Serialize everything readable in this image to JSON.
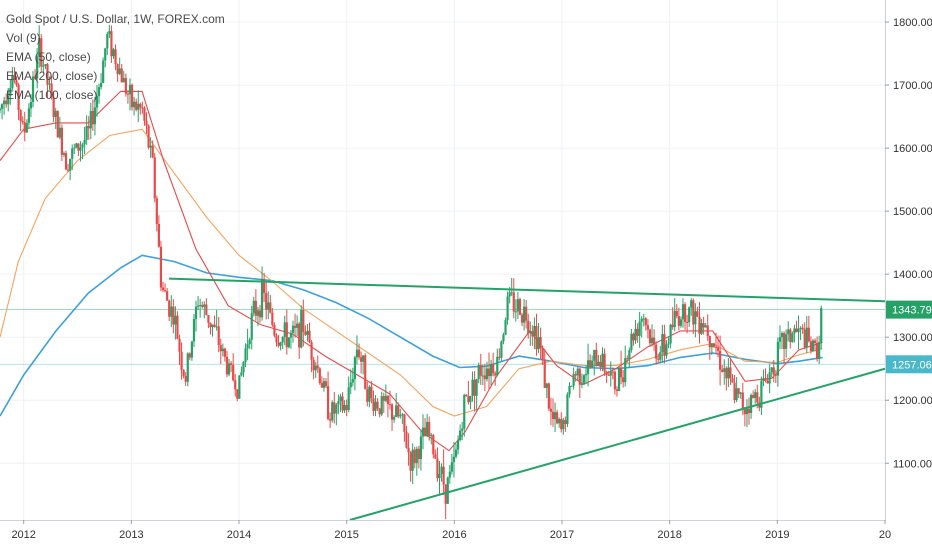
{
  "chart_data": {
    "type": "candlestick",
    "title": "Gold Spot / U.S. Dollar, 1W, FOREX.com",
    "indicators": [
      "Vol (9)",
      "EMA (50, close)",
      "EMA (200, close)",
      "EMA (100, close)"
    ],
    "x_ticks": [
      "2012",
      "2013",
      "2014",
      "2015",
      "2016",
      "2017",
      "2018",
      "2019",
      "20"
    ],
    "y_ticks": [
      "1800.00",
      "1700.00",
      "1600.00",
      "1500.00",
      "1400.00",
      "1300.00",
      "1200.00",
      "1100.00"
    ],
    "ylim": [
      1010,
      1835
    ],
    "xlim": [
      2011.78,
      2020.0
    ],
    "price_badges": [
      {
        "label": "1343.79",
        "value": 1343.79,
        "color": "#26a269"
      },
      {
        "label": "1257.06",
        "value": 1257.06,
        "color": "#4ab8c8"
      }
    ],
    "horizontal_lines": [
      1343.79,
      1257.06
    ],
    "trendlines": [
      {
        "name": "upper",
        "from": [
          2013.35,
          1393
        ],
        "to": [
          2020.0,
          1357
        ]
      },
      {
        "name": "lower",
        "from": [
          2015.03,
          1010
        ],
        "to": [
          2020.0,
          1250
        ]
      }
    ],
    "price_path": [
      [
        2011.78,
        1660
      ],
      [
        2011.9,
        1720
      ],
      [
        2012.0,
        1620
      ],
      [
        2012.15,
        1760
      ],
      [
        2012.3,
        1640
      ],
      [
        2012.4,
        1580
      ],
      [
        2012.5,
        1600
      ],
      [
        2012.6,
        1620
      ],
      [
        2012.7,
        1700
      ],
      [
        2012.78,
        1780
      ],
      [
        2012.9,
        1720
      ],
      [
        2013.0,
        1670
      ],
      [
        2013.1,
        1660
      ],
      [
        2013.2,
        1570
      ],
      [
        2013.28,
        1380
      ],
      [
        2013.4,
        1330
      ],
      [
        2013.5,
        1230
      ],
      [
        2013.62,
        1360
      ],
      [
        2013.75,
        1320
      ],
      [
        2013.9,
        1250
      ],
      [
        2014.0,
        1220
      ],
      [
        2014.1,
        1320
      ],
      [
        2014.22,
        1370
      ],
      [
        2014.35,
        1300
      ],
      [
        2014.5,
        1300
      ],
      [
        2014.6,
        1320
      ],
      [
        2014.75,
        1240
      ],
      [
        2014.85,
        1180
      ],
      [
        2015.0,
        1190
      ],
      [
        2015.1,
        1290
      ],
      [
        2015.22,
        1200
      ],
      [
        2015.35,
        1190
      ],
      [
        2015.5,
        1170
      ],
      [
        2015.6,
        1100
      ],
      [
        2015.75,
        1150
      ],
      [
        2015.92,
        1060
      ],
      [
        2016.0,
        1100
      ],
      [
        2016.1,
        1200
      ],
      [
        2016.25,
        1250
      ],
      [
        2016.4,
        1260
      ],
      [
        2016.5,
        1360
      ],
      [
        2016.65,
        1340
      ],
      [
        2016.78,
        1300
      ],
      [
        2016.9,
        1170
      ],
      [
        2017.0,
        1150
      ],
      [
        2017.1,
        1240
      ],
      [
        2017.25,
        1250
      ],
      [
        2017.35,
        1270
      ],
      [
        2017.5,
        1220
      ],
      [
        2017.65,
        1300
      ],
      [
        2017.75,
        1340
      ],
      [
        2017.85,
        1280
      ],
      [
        2017.95,
        1280
      ],
      [
        2018.05,
        1330
      ],
      [
        2018.15,
        1345
      ],
      [
        2018.3,
        1330
      ],
      [
        2018.4,
        1300
      ],
      [
        2018.5,
        1250
      ],
      [
        2018.6,
        1210
      ],
      [
        2018.7,
        1190
      ],
      [
        2018.82,
        1210
      ],
      [
        2018.95,
        1250
      ],
      [
        2019.05,
        1290
      ],
      [
        2019.15,
        1310
      ],
      [
        2019.25,
        1300
      ],
      [
        2019.32,
        1280
      ],
      [
        2019.38,
        1285
      ],
      [
        2019.42,
        1344
      ]
    ],
    "ema_50_path": [
      [
        2011.78,
        1580
      ],
      [
        2012.0,
        1630
      ],
      [
        2012.3,
        1640
      ],
      [
        2012.6,
        1640
      ],
      [
        2012.9,
        1690
      ],
      [
        2013.1,
        1690
      ],
      [
        2013.3,
        1580
      ],
      [
        2013.6,
        1440
      ],
      [
        2013.9,
        1350
      ],
      [
        2014.2,
        1320
      ],
      [
        2014.5,
        1305
      ],
      [
        2014.8,
        1270
      ],
      [
        2015.1,
        1240
      ],
      [
        2015.4,
        1210
      ],
      [
        2015.7,
        1150
      ],
      [
        2015.95,
        1120
      ],
      [
        2016.1,
        1150
      ],
      [
        2016.4,
        1240
      ],
      [
        2016.7,
        1310
      ],
      [
        2016.95,
        1255
      ],
      [
        2017.2,
        1225
      ],
      [
        2017.5,
        1250
      ],
      [
        2017.8,
        1285
      ],
      [
        2018.1,
        1310
      ],
      [
        2018.4,
        1310
      ],
      [
        2018.7,
        1230
      ],
      [
        2018.95,
        1235
      ],
      [
        2019.2,
        1280
      ],
      [
        2019.42,
        1292
      ]
    ],
    "ema_100_path": [
      [
        2011.78,
        1300
      ],
      [
        2011.95,
        1420
      ],
      [
        2012.2,
        1520
      ],
      [
        2012.5,
        1580
      ],
      [
        2012.8,
        1620
      ],
      [
        2013.1,
        1630
      ],
      [
        2013.4,
        1560
      ],
      [
        2013.7,
        1490
      ],
      [
        2014.0,
        1430
      ],
      [
        2014.3,
        1390
      ],
      [
        2014.6,
        1345
      ],
      [
        2014.9,
        1310
      ],
      [
        2015.2,
        1275
      ],
      [
        2015.5,
        1240
      ],
      [
        2015.8,
        1190
      ],
      [
        2016.0,
        1175
      ],
      [
        2016.3,
        1190
      ],
      [
        2016.6,
        1250
      ],
      [
        2016.9,
        1262
      ],
      [
        2017.2,
        1255
      ],
      [
        2017.5,
        1255
      ],
      [
        2017.8,
        1265
      ],
      [
        2018.1,
        1280
      ],
      [
        2018.4,
        1290
      ],
      [
        2018.7,
        1262
      ],
      [
        2019.0,
        1260
      ],
      [
        2019.2,
        1272
      ],
      [
        2019.42,
        1282
      ]
    ],
    "ema_200_path": [
      [
        2011.78,
        1175
      ],
      [
        2012.0,
        1240
      ],
      [
        2012.3,
        1310
      ],
      [
        2012.6,
        1370
      ],
      [
        2012.9,
        1410
      ],
      [
        2013.1,
        1430
      ],
      [
        2013.4,
        1420
      ],
      [
        2013.7,
        1402
      ],
      [
        2014.0,
        1395
      ],
      [
        2014.3,
        1390
      ],
      [
        2014.6,
        1375
      ],
      [
        2014.9,
        1355
      ],
      [
        2015.2,
        1330
      ],
      [
        2015.5,
        1300
      ],
      [
        2015.8,
        1270
      ],
      [
        2016.05,
        1252
      ],
      [
        2016.3,
        1254
      ],
      [
        2016.6,
        1270
      ],
      [
        2016.9,
        1262
      ],
      [
        2017.2,
        1252
      ],
      [
        2017.5,
        1250
      ],
      [
        2017.8,
        1255
      ],
      [
        2018.1,
        1268
      ],
      [
        2018.4,
        1275
      ],
      [
        2018.7,
        1265
      ],
      [
        2019.0,
        1258
      ],
      [
        2019.2,
        1262
      ],
      [
        2019.42,
        1268
      ]
    ],
    "colors": {
      "up": "#26a269",
      "down": "#e64b4b",
      "ema_50": "#e64b4b",
      "ema_100": "#f4a460",
      "ema_200": "#3fa0d8",
      "trendline": "#26a269",
      "grid": "#eef1f4"
    }
  }
}
